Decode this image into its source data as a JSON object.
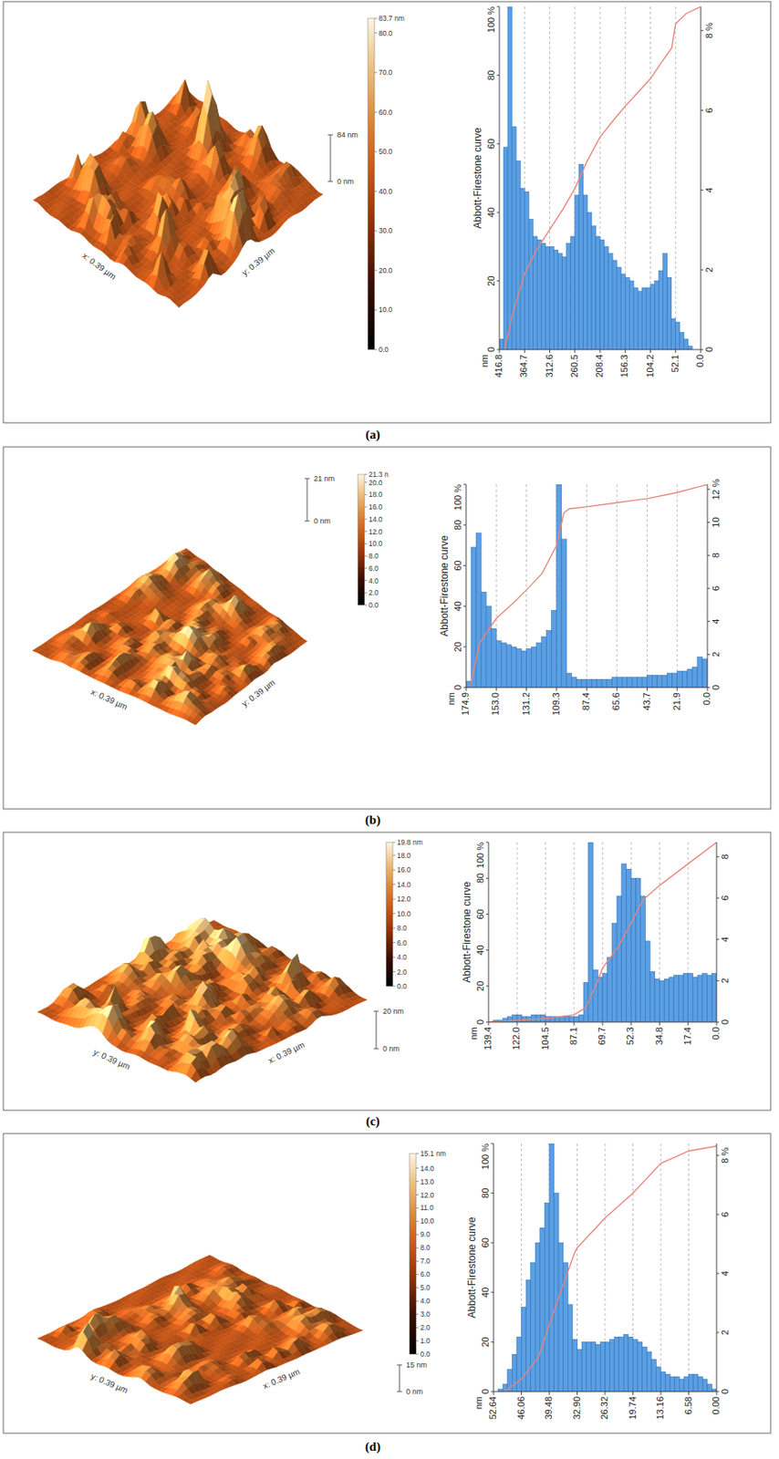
{
  "chart_data": [
    {
      "type": "histogram",
      "title": "(a)",
      "xlabel": "nm",
      "ylabel": "Abbott-Firestone curve",
      "bins": [
        416.8,
        408.12,
        399.43,
        390.75,
        382.07,
        373.38,
        364.7,
        356.02,
        347.33,
        338.65,
        329.97,
        321.28,
        312.6,
        303.92,
        295.23,
        286.55,
        277.87,
        269.18,
        260.5,
        251.82,
        243.13,
        234.45,
        225.77,
        217.08,
        208.4,
        199.72,
        191.03,
        182.35,
        173.67,
        164.98,
        156.3,
        147.62,
        138.93,
        130.25,
        121.57,
        112.88,
        104.2,
        95.52,
        86.83,
        78.15,
        69.47,
        60.78,
        52.1,
        43.42,
        34.73,
        26.05,
        17.37,
        8.68,
        0
      ],
      "series": [
        {
          "type": "bar",
          "color": "#5b9fe3",
          "values": [
            3,
            59,
            100,
            65,
            55,
            47,
            46,
            38,
            33,
            32,
            31,
            30,
            30,
            29,
            28,
            27,
            31,
            33,
            45,
            54,
            45,
            40,
            36,
            33,
            32,
            30,
            28,
            26,
            24,
            22,
            21,
            20,
            18,
            17,
            18,
            18,
            19,
            20,
            23,
            28,
            21,
            9,
            8,
            5,
            3,
            1,
            0,
            0
          ]
        },
        {
          "type": "line",
          "color": "#e8857a",
          "x": [
            406,
            390,
            364.7,
            340,
            312.6,
            285,
            260.5,
            235,
            208.4,
            180,
            156.3,
            130,
            104.2,
            80,
            60,
            52.1,
            30,
            0
          ],
          "values": [
            0,
            10,
            22,
            29,
            35,
            41,
            47,
            55,
            62,
            67,
            71,
            75,
            79,
            84,
            88,
            95,
            98,
            100
          ]
        }
      ],
      "xlim": [
        416.8,
        0
      ],
      "xticks": [
        416.8,
        364.7,
        312.6,
        260.5,
        208.4,
        156.3,
        104.2,
        52.1,
        {
          "value": 0,
          "label": "0.0"
        }
      ],
      "ylim": [
        0,
        100
      ],
      "yticks": [
        0,
        20,
        40,
        60,
        80,
        {
          "value": 100,
          "label": "100 %"
        }
      ],
      "y2lim": [
        0,
        8.6
      ],
      "y2ticks": [
        0,
        2,
        4,
        6,
        {
          "value": 8,
          "label": "8 %"
        }
      ],
      "grid": true,
      "surface": {
        "x_label": "x: 0.39 µm",
        "y_label": "y: 0.39 µm",
        "z_labels": [
          "84 nm",
          "0 nm"
        ],
        "colorbar": {
          "range": [
            0,
            83.7
          ],
          "ticks": [
            {
              "value": 0,
              "label": "0.0"
            },
            {
              "value": 10,
              "label": "10.0"
            },
            {
              "value": 20,
              "label": "20.0"
            },
            {
              "value": 30,
              "label": "30.0"
            },
            {
              "value": 40,
              "label": "40.0"
            },
            {
              "value": 50,
              "label": "50.0"
            },
            {
              "value": 60,
              "label": "60.0"
            },
            {
              "value": 70,
              "label": "70.0"
            },
            {
              "value": 80,
              "label": "80.0"
            },
            {
              "value": 83.7,
              "label": "83.7 nm"
            }
          ]
        }
      }
    },
    {
      "type": "histogram",
      "title": "(b)",
      "xlabel": "nm",
      "ylabel": "Abbott-Firestone curve",
      "bins": [
        174.9,
        171.26,
        167.61,
        163.97,
        160.33,
        156.68,
        153.04,
        149.39,
        145.75,
        142.11,
        138.46,
        134.82,
        131.18,
        127.53,
        123.89,
        120.24,
        116.6,
        112.96,
        109.31,
        105.67,
        102.03,
        98.38,
        94.74,
        91.09,
        87.45,
        83.81,
        80.16,
        76.52,
        72.88,
        69.23,
        65.59,
        61.94,
        58.3,
        54.66,
        51.01,
        47.37,
        43.73,
        40.08,
        36.44,
        32.79,
        29.15,
        25.51,
        21.86,
        18.22,
        14.58,
        10.93,
        7.29,
        3.64,
        0
      ],
      "series": [
        {
          "type": "bar",
          "color": "#5b9fe3",
          "values": [
            3,
            69,
            76,
            47,
            40,
            29,
            23,
            22,
            21,
            20,
            19,
            18,
            19,
            20,
            22,
            25,
            28,
            38,
            100,
            73,
            7,
            5,
            4,
            4,
            4,
            4,
            4,
            4,
            4,
            5,
            5,
            5,
            5,
            5,
            5,
            5,
            6,
            6,
            6,
            6,
            7,
            7,
            8,
            8,
            9,
            10,
            15,
            14
          ]
        },
        {
          "type": "line",
          "color": "#e8857a",
          "x": [
            172,
            165,
            153,
            140,
            131.2,
            120,
            109.3,
            104,
            100,
            87.4,
            65.6,
            43.7,
            21.9,
            5,
            0
          ],
          "values": [
            0,
            22,
            34,
            42,
            48,
            56,
            70,
            86,
            88,
            89,
            91,
            93,
            96,
            99,
            100
          ]
        }
      ],
      "xlim": [
        174.9,
        0
      ],
      "xticks": [
        174.9,
        {
          "value": 153,
          "label": "153.0"
        },
        131.2,
        109.3,
        87.4,
        65.6,
        43.7,
        21.9,
        {
          "value": 0,
          "label": "0.0"
        }
      ],
      "ylim": [
        0,
        100
      ],
      "yticks": [
        0,
        20,
        40,
        60,
        80,
        {
          "value": 100,
          "label": "100 %"
        }
      ],
      "y2lim": [
        0,
        12.3
      ],
      "y2ticks": [
        0,
        2,
        4,
        6,
        8,
        10,
        {
          "value": 12,
          "label": "12 %"
        }
      ],
      "grid": true,
      "surface": {
        "x_label": "x: 0.39 µm",
        "y_label": "y: 0.39 µm",
        "z_labels": [
          "21 nm",
          "0 nm"
        ],
        "colorbar": {
          "range": [
            0,
            21.3
          ],
          "ticks": [
            {
              "value": 0,
              "label": "0.0"
            },
            {
              "value": 2,
              "label": "2.0"
            },
            {
              "value": 4,
              "label": "4.0"
            },
            {
              "value": 6,
              "label": "6.0"
            },
            {
              "value": 8,
              "label": "8.0"
            },
            {
              "value": 10,
              "label": "10.0"
            },
            {
              "value": 12,
              "label": "12.0"
            },
            {
              "value": 14,
              "label": "14.0"
            },
            {
              "value": 16,
              "label": "16.0"
            },
            {
              "value": 18,
              "label": "18.0"
            },
            {
              "value": 20,
              "label": "20.0"
            },
            {
              "value": 21.3,
              "label": "21.3 n"
            }
          ]
        }
      }
    },
    {
      "type": "histogram",
      "title": "(c)",
      "xlabel": "nm",
      "ylabel": "Abbott-Firestone curve",
      "bins": [
        139.4,
        136.5,
        133.59,
        130.69,
        127.78,
        124.88,
        121.98,
        119.07,
        116.17,
        113.26,
        110.36,
        107.45,
        104.55,
        101.65,
        98.74,
        95.84,
        92.93,
        90.03,
        87.13,
        84.22,
        81.32,
        78.41,
        75.51,
        72.6,
        69.7,
        66.8,
        63.89,
        60.99,
        58.08,
        55.18,
        52.28,
        49.37,
        46.47,
        43.56,
        40.66,
        37.75,
        34.85,
        31.95,
        29.04,
        26.14,
        23.23,
        20.33,
        17.43,
        14.52,
        11.62,
        8.71,
        5.81,
        2.9,
        0
      ],
      "series": [
        {
          "type": "bar",
          "color": "#5b9fe3",
          "values": [
            0,
            1,
            1,
            2,
            3,
            4,
            4,
            3,
            3,
            4,
            4,
            4,
            3,
            3,
            3,
            3,
            3,
            3,
            3,
            4,
            22,
            100,
            29,
            25,
            27,
            36,
            55,
            70,
            88,
            85,
            80,
            80,
            70,
            45,
            28,
            24,
            23,
            24,
            25,
            26,
            26,
            27,
            27,
            25,
            26,
            27,
            26,
            27
          ]
        },
        {
          "type": "line",
          "color": "#e8857a",
          "x": [
            139.4,
            122,
            104.5,
            87.1,
            80,
            73,
            69.7,
            60,
            52.3,
            45,
            34.8,
            17.4,
            0
          ],
          "values": [
            0,
            1,
            2,
            4,
            8,
            22,
            30,
            42,
            55,
            68,
            76,
            88,
            100
          ]
        }
      ],
      "xlim": [
        139.4,
        0
      ],
      "xticks": [
        139.4,
        {
          "value": 122,
          "label": "122.0"
        },
        104.5,
        87.1,
        69.7,
        52.3,
        34.8,
        17.4,
        {
          "value": 0,
          "label": "0.0"
        }
      ],
      "ylim": [
        0,
        100
      ],
      "yticks": [
        0,
        20,
        40,
        60,
        80,
        {
          "value": 100,
          "label": "100 %"
        }
      ],
      "y2lim": [
        0,
        8.7
      ],
      "y2ticks": [
        0,
        2,
        4,
        6,
        8
      ],
      "grid": true,
      "surface": {
        "x_label": "x: 0.39 µm",
        "y_label": "y: 0.39 µm",
        "z_labels": [
          "20 nm",
          "0 nm"
        ],
        "colorbar": {
          "range": [
            0,
            19.8
          ],
          "ticks": [
            {
              "value": 0,
              "label": "0.0"
            },
            {
              "value": 2,
              "label": "2.0"
            },
            {
              "value": 4,
              "label": "4.0"
            },
            {
              "value": 6,
              "label": "6.0"
            },
            {
              "value": 8,
              "label": "8.0"
            },
            {
              "value": 10,
              "label": "10.0"
            },
            {
              "value": 12,
              "label": "12.0"
            },
            {
              "value": 14,
              "label": "14.0"
            },
            {
              "value": 16,
              "label": "16.0"
            },
            {
              "value": 18,
              "label": "18.0"
            },
            {
              "value": 19.8,
              "label": "19.8 nm"
            }
          ]
        }
      }
    },
    {
      "type": "histogram",
      "title": "(d)",
      "xlabel": "nm",
      "ylabel": "Abbott-Firestone curve",
      "bins": [
        52.64,
        51.54,
        50.45,
        49.35,
        48.25,
        47.16,
        46.06,
        44.96,
        43.87,
        42.77,
        41.67,
        40.58,
        39.48,
        38.38,
        37.29,
        36.19,
        35.09,
        34.0,
        32.9,
        31.8,
        30.71,
        29.61,
        28.51,
        27.42,
        26.32,
        25.22,
        24.13,
        23.03,
        21.93,
        20.84,
        19.74,
        18.64,
        17.55,
        16.45,
        15.35,
        14.26,
        13.16,
        12.06,
        10.97,
        9.87,
        8.77,
        7.68,
        6.58,
        5.48,
        4.39,
        3.29,
        2.19,
        1.1,
        0
      ],
      "series": [
        {
          "type": "bar",
          "color": "#5b9fe3",
          "values": [
            0,
            1,
            3,
            9,
            15,
            22,
            34,
            45,
            52,
            60,
            66,
            76,
            100,
            80,
            60,
            52,
            35,
            21,
            17,
            20,
            20,
            20,
            19,
            20,
            20,
            21,
            22,
            22,
            23,
            22,
            21,
            20,
            18,
            16,
            13,
            10,
            8,
            7,
            6,
            6,
            5,
            6,
            7,
            7,
            6,
            5,
            3,
            1
          ]
        },
        {
          "type": "line",
          "color": "#e8857a",
          "x": [
            50,
            46.06,
            42,
            39.48,
            36,
            33.5,
            32.9,
            26.32,
            19.74,
            13.16,
            6.58,
            0
          ],
          "values": [
            0,
            5,
            14,
            27,
            44,
            56,
            58,
            70,
            80,
            92,
            97,
            99
          ]
        }
      ],
      "xlim": [
        52.64,
        0
      ],
      "xticks": [
        52.64,
        46.06,
        39.48,
        {
          "value": 32.9,
          "label": "32.90"
        },
        26.32,
        19.74,
        13.16,
        6.58,
        {
          "value": 0,
          "label": "0.00"
        }
      ],
      "ylim": [
        0,
        100
      ],
      "yticks": [
        0,
        20,
        40,
        60,
        80,
        {
          "value": 100,
          "label": "100 %"
        }
      ],
      "y2lim": [
        0,
        8.4
      ],
      "y2ticks": [
        0,
        2,
        4,
        6,
        {
          "value": 8,
          "label": "8 %"
        }
      ],
      "grid": true,
      "surface": {
        "x_label": "x: 0.39 µm",
        "y_label": "y: 0.39 µm",
        "z_labels": [
          "15 nm",
          "0 nm"
        ],
        "colorbar": {
          "range": [
            0,
            15.1
          ],
          "ticks": [
            {
              "value": 0,
              "label": "0.0"
            },
            {
              "value": 1,
              "label": "1.0"
            },
            {
              "value": 2,
              "label": "2.0"
            },
            {
              "value": 3,
              "label": "3.0"
            },
            {
              "value": 4,
              "label": "4.0"
            },
            {
              "value": 5,
              "label": "5.0"
            },
            {
              "value": 6,
              "label": "6.0"
            },
            {
              "value": 7,
              "label": "7.0"
            },
            {
              "value": 8,
              "label": "8.0"
            },
            {
              "value": 9,
              "label": "9.0"
            },
            {
              "value": 10,
              "label": "10.0"
            },
            {
              "value": 11,
              "label": "11.0"
            },
            {
              "value": 12,
              "label": "12.0"
            },
            {
              "value": 13,
              "label": "13.0"
            },
            {
              "value": 14,
              "label": "14.0"
            },
            {
              "value": 15.1,
              "label": "15.1 nm"
            }
          ]
        }
      }
    }
  ]
}
